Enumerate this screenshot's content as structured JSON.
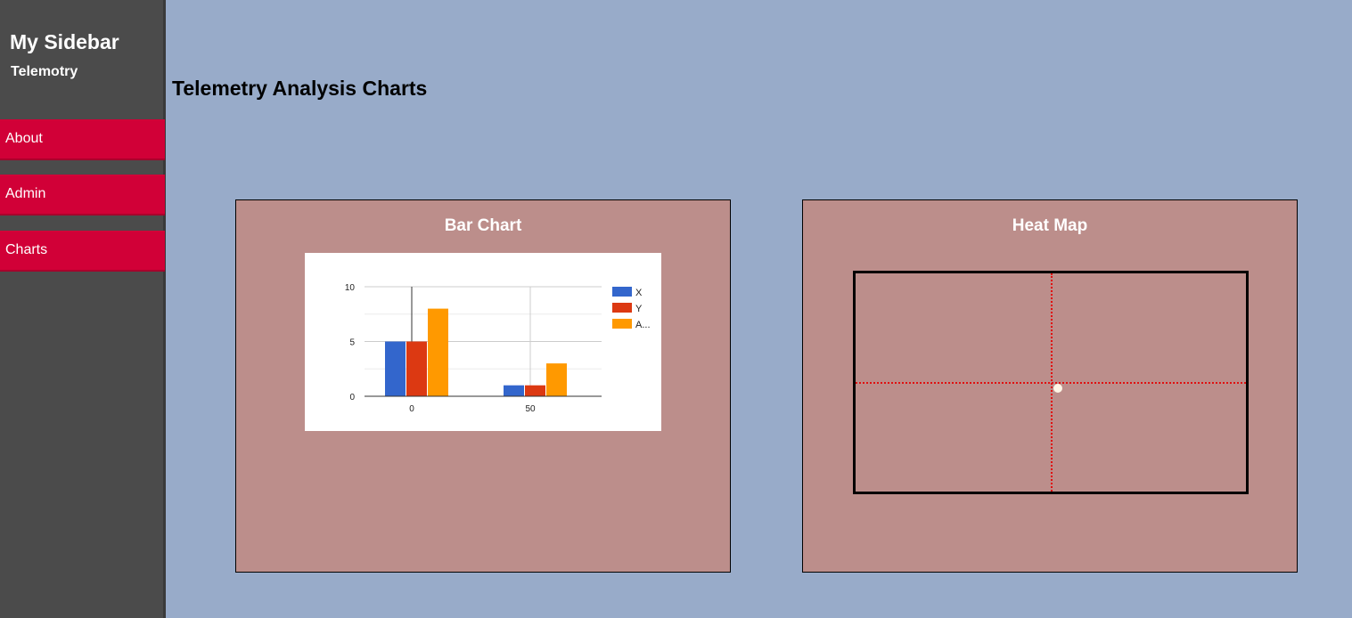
{
  "sidebar": {
    "title": "My Sidebar",
    "subtitle": "Telemotry",
    "items": [
      {
        "label": "About"
      },
      {
        "label": "Admin"
      },
      {
        "label": "Charts"
      }
    ]
  },
  "main": {
    "title": "Telemetry Analysis Charts",
    "bar_panel_title": "Bar Chart",
    "heat_panel_title": "Heat Map"
  },
  "colors": {
    "sidebar_bg": "#4b4b4b",
    "nav_item": "#d10037",
    "page_bg": "#98abc9",
    "panel_bg": "#bc8e8b",
    "series": [
      "#3366cc",
      "#dc3912",
      "#ff9900"
    ]
  },
  "chart_data": {
    "type": "bar",
    "categories": [
      "0",
      "50"
    ],
    "series": [
      {
        "name": "X",
        "values": [
          5,
          1
        ]
      },
      {
        "name": "Y",
        "values": [
          5,
          1
        ]
      },
      {
        "name": "A...",
        "values": [
          8,
          3
        ]
      }
    ],
    "ylim": [
      0,
      10
    ],
    "yticks": [
      0,
      5,
      10
    ],
    "legend": "right",
    "grid": true
  }
}
